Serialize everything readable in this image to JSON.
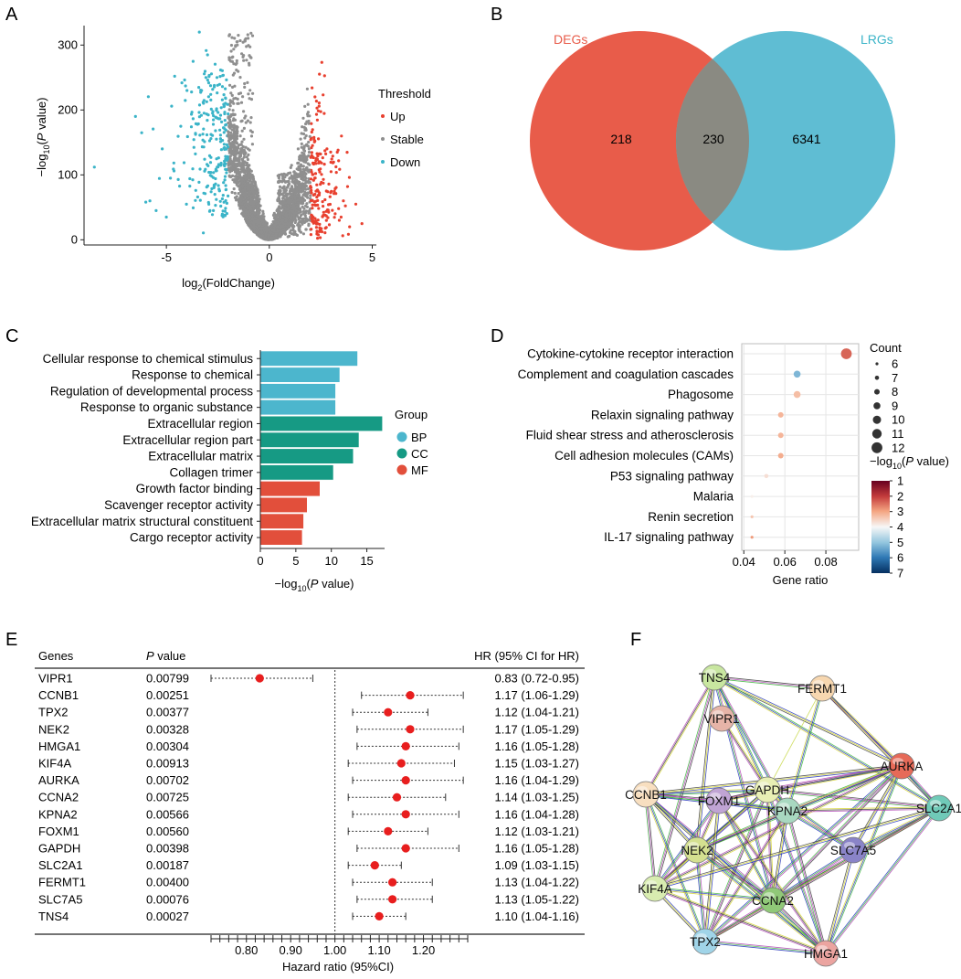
{
  "panel_labels": [
    "A",
    "B",
    "C",
    "D",
    "E",
    "F"
  ],
  "colors": {
    "up": "#e8402f",
    "stable": "#8f8f8f",
    "down": "#3bb4c8",
    "degs": "#e85c4a",
    "lrgs": "#5fbdd3",
    "overlap": "#8a8a82",
    "bp": "#4cb6cd",
    "cc": "#169a84",
    "mf": "#e24f3b",
    "forest_point": "#e81e1e"
  },
  "chart_data": [
    {
      "id": "volcano",
      "type": "scatter",
      "xlabel_base": "log",
      "xlabel_sub": "2",
      "xlabel_rest": "(FoldChange)",
      "ylabel_pre": "−log",
      "ylabel_sub": "10",
      "ylabel_open": "(",
      "ylabel_italic": "P",
      "ylabel_close": " value)",
      "xlim": [
        -9,
        5.2
      ],
      "ylim": [
        -8,
        330
      ],
      "x_ticks": [
        -5,
        0,
        5
      ],
      "y_ticks": [
        0,
        100,
        200,
        300
      ],
      "legend_title": "Threshold",
      "legend": [
        "Up",
        "Stable",
        "Down"
      ],
      "threshold_fc": 2,
      "series_note": "dense point cloud: Down (log2FC<-2), Stable (|log2FC|<=2), Up (log2FC>2)"
    },
    {
      "id": "venn",
      "type": "venn",
      "sets": [
        "DEGs",
        "LRGs"
      ],
      "only_a": 218,
      "both": 230,
      "only_b": 6341
    },
    {
      "id": "go_bar",
      "type": "bar",
      "orientation": "horizontal",
      "categories": [
        "Cellular response to chemical stimulus",
        "Response to chemical",
        "Regulation of developmental process",
        "Response to organic substance",
        "Extracellular region",
        "Extracellular region part",
        "Extracellular matrix",
        "Collagen trimer",
        "Growth factor binding",
        "Scavenger receptor activity",
        "Extracellular matrix structural constituent",
        "Cargo receptor activity"
      ],
      "values": [
        13.7,
        11.2,
        10.6,
        10.6,
        17.2,
        13.9,
        13.1,
        10.3,
        8.4,
        6.6,
        6.1,
        5.9
      ],
      "groups": [
        "BP",
        "BP",
        "BP",
        "BP",
        "CC",
        "CC",
        "CC",
        "CC",
        "MF",
        "MF",
        "MF",
        "MF"
      ],
      "xlim": [
        0,
        17.5
      ],
      "x_ticks": [
        0,
        5,
        10,
        15
      ],
      "xlabel_pre": "−log",
      "xlabel_sub": "10",
      "xlabel_open": "(",
      "xlabel_italic": "P",
      "xlabel_close": " value)",
      "legend_title": "Group",
      "legend": [
        "BP",
        "CC",
        "MF"
      ]
    },
    {
      "id": "kegg_dot",
      "type": "scatter",
      "categories": [
        "Cytokine-cytokine receptor interaction",
        "Complement and coagulation cascades",
        "Phagosome",
        "Relaxin signaling pathway",
        "Fluid shear stress and atherosclerosis",
        "Cell adhesion molecules (CAMs)",
        "P53 signaling pathway",
        "Malaria",
        "Renin secretion",
        "IL-17 signaling pathway"
      ],
      "gene_ratio": [
        0.09,
        0.066,
        0.066,
        0.058,
        0.058,
        0.058,
        0.051,
        0.044,
        0.044,
        0.044
      ],
      "count": [
        12,
        9,
        9,
        8,
        8,
        8,
        7,
        6,
        6,
        6
      ],
      "neglog10p": [
        2.4,
        5.2,
        3.3,
        3.2,
        3.2,
        3.1,
        3.7,
        3.9,
        3.4,
        2.9
      ],
      "xlim": [
        0.039,
        0.096
      ],
      "x_ticks": [
        0.04,
        0.06,
        0.08
      ],
      "x_tick_labels": [
        "0.04",
        "0.06",
        "0.08"
      ],
      "xlabel": "Gene ratio",
      "size_legend_title": "Count",
      "size_legend": [
        6,
        7,
        8,
        9,
        10,
        11,
        12
      ],
      "color_legend_pre": "−log",
      "color_legend_sub": "10",
      "color_legend_open": "(",
      "color_legend_italic": "P",
      "color_legend_close": " value)",
      "color_scale_ticks": [
        1,
        2,
        3,
        4,
        5,
        6,
        7
      ]
    },
    {
      "id": "forest",
      "type": "forest",
      "col_genes": "Genes",
      "col_p_italic": "P",
      "col_p_rest": " value",
      "col_hr": "HR (95% CI for HR)",
      "genes": [
        "VIPR1",
        "CCNB1",
        "TPX2",
        "NEK2",
        "HMGA1",
        "KIF4A",
        "AURKA",
        "CCNA2",
        "KPNA2",
        "FOXM1",
        "GAPDH",
        "SLC2A1",
        "FERMT1",
        "SLC7A5",
        "TNS4"
      ],
      "p_values": [
        "0.00799",
        "0.00251",
        "0.00377",
        "0.00328",
        "0.00304",
        "0.00913",
        "0.00702",
        "0.00725",
        "0.00566",
        "0.00560",
        "0.00398",
        "0.00187",
        "0.00400",
        "0.00076",
        "0.00027"
      ],
      "hr": [
        0.83,
        1.17,
        1.12,
        1.17,
        1.16,
        1.15,
        1.16,
        1.14,
        1.16,
        1.12,
        1.16,
        1.09,
        1.13,
        1.13,
        1.1
      ],
      "lower": [
        0.72,
        1.06,
        1.04,
        1.05,
        1.05,
        1.03,
        1.04,
        1.03,
        1.04,
        1.03,
        1.05,
        1.03,
        1.04,
        1.05,
        1.04
      ],
      "upper": [
        0.95,
        1.29,
        1.21,
        1.29,
        1.28,
        1.27,
        1.29,
        1.25,
        1.28,
        1.21,
        1.28,
        1.15,
        1.22,
        1.22,
        1.16
      ],
      "hr_text": [
        "0.83 (0.72-0.95)",
        "1.17 (1.06-1.29)",
        "1.12 (1.04-1.21)",
        "1.17 (1.05-1.29)",
        "1.16 (1.05-1.28)",
        "1.15 (1.03-1.27)",
        "1.16 (1.04-1.29)",
        "1.14 (1.03-1.25)",
        "1.16 (1.04-1.28)",
        "1.12 (1.03-1.21)",
        "1.16 (1.05-1.28)",
        "1.09 (1.03-1.15)",
        "1.13 (1.04-1.22)",
        "1.13 (1.05-1.22)",
        "1.10 (1.04-1.16)"
      ],
      "xlim": [
        0.72,
        1.3
      ],
      "x_ticks": [
        0.8,
        0.9,
        1.0,
        1.1,
        1.2
      ],
      "x_tick_labels": [
        "0.80",
        "0.90",
        "1.00",
        "1.10",
        "1.20"
      ],
      "reference": 1.0,
      "xlabel": "Hazard ratio (95%CI)"
    },
    {
      "id": "ppi",
      "type": "network",
      "nodes": [
        {
          "label": "TNS4",
          "color": "#c8e6a0"
        },
        {
          "label": "FERMT1",
          "color": "#f7d7b0"
        },
        {
          "label": "VIPR1",
          "color": "#e6b4a8"
        },
        {
          "label": "GAPDH",
          "color": "#e8efb4"
        },
        {
          "label": "AURKA",
          "color": "#e66a58"
        },
        {
          "label": "CCNB1",
          "color": "#f8dfc0"
        },
        {
          "label": "FOXM1",
          "color": "#c0a4d4"
        },
        {
          "label": "KPNA2",
          "color": "#a8d8c0"
        },
        {
          "label": "SLC2A1",
          "color": "#70cab8"
        },
        {
          "label": "NEK2",
          "color": "#d4e090"
        },
        {
          "label": "SLC7A5",
          "color": "#8a84c8"
        },
        {
          "label": "KIF4A",
          "color": "#d8ecb0"
        },
        {
          "label": "CCNA2",
          "color": "#90c878"
        },
        {
          "label": "TPX2",
          "color": "#a0d4e8"
        },
        {
          "label": "HMGA1",
          "color": "#eba4a0"
        }
      ],
      "edges": [
        [
          0,
          1
        ],
        [
          0,
          3
        ],
        [
          0,
          4
        ],
        [
          0,
          5
        ],
        [
          0,
          8
        ],
        [
          0,
          11
        ],
        [
          0,
          9
        ],
        [
          0,
          12
        ],
        [
          1,
          3
        ],
        [
          1,
          4
        ],
        [
          1,
          8
        ],
        [
          3,
          4
        ],
        [
          3,
          5
        ],
        [
          3,
          6
        ],
        [
          3,
          7
        ],
        [
          3,
          8
        ],
        [
          3,
          9
        ],
        [
          3,
          10
        ],
        [
          3,
          11
        ],
        [
          3,
          12
        ],
        [
          3,
          13
        ],
        [
          3,
          14
        ],
        [
          4,
          5
        ],
        [
          4,
          6
        ],
        [
          4,
          7
        ],
        [
          4,
          8
        ],
        [
          4,
          9
        ],
        [
          4,
          10
        ],
        [
          4,
          11
        ],
        [
          4,
          12
        ],
        [
          4,
          13
        ],
        [
          4,
          14
        ],
        [
          5,
          6
        ],
        [
          5,
          7
        ],
        [
          5,
          9
        ],
        [
          5,
          11
        ],
        [
          5,
          12
        ],
        [
          5,
          13
        ],
        [
          5,
          14
        ],
        [
          6,
          7
        ],
        [
          6,
          9
        ],
        [
          6,
          11
        ],
        [
          6,
          12
        ],
        [
          6,
          13
        ],
        [
          6,
          14
        ],
        [
          7,
          9
        ],
        [
          7,
          12
        ],
        [
          7,
          13
        ],
        [
          7,
          14
        ],
        [
          7,
          8
        ],
        [
          7,
          10
        ],
        [
          8,
          10
        ],
        [
          8,
          12
        ],
        [
          8,
          14
        ],
        [
          9,
          11
        ],
        [
          9,
          12
        ],
        [
          9,
          13
        ],
        [
          9,
          14
        ],
        [
          10,
          12
        ],
        [
          10,
          14
        ],
        [
          11,
          12
        ],
        [
          11,
          13
        ],
        [
          11,
          14
        ],
        [
          12,
          13
        ],
        [
          12,
          14
        ],
        [
          13,
          14
        ],
        [
          2,
          3
        ],
        [
          8,
          11
        ],
        [
          8,
          13
        ],
        [
          0,
          7
        ],
        [
          1,
          7
        ]
      ]
    }
  ]
}
